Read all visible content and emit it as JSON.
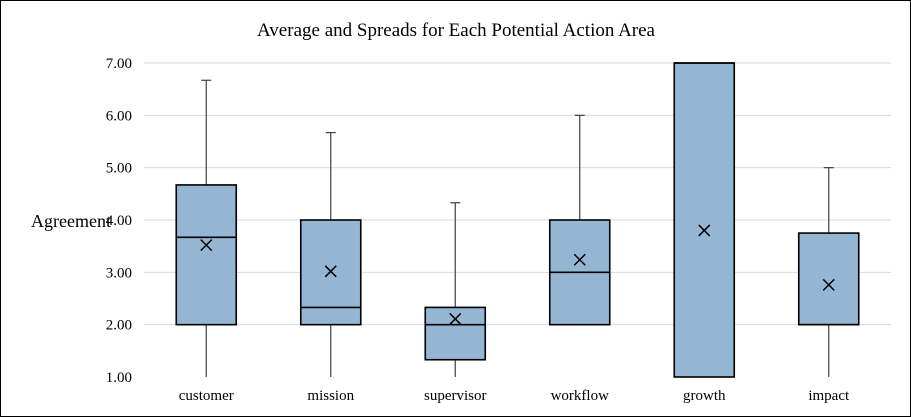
{
  "chart_data": {
    "type": "box",
    "title": "Average and Spreads for Each Potential Action Area",
    "xlabel": "",
    "ylabel": "Agreement",
    "ylim": [
      1,
      7
    ],
    "yticks": [
      "1.00",
      "2.00",
      "3.00",
      "4.00",
      "5.00",
      "6.00",
      "7.00"
    ],
    "grid": true,
    "box_color": "#95B6D3",
    "categories": [
      "customer",
      "mission",
      "supervisor",
      "workflow",
      "growth",
      "impact"
    ],
    "boxes": [
      {
        "category": "customer",
        "min": 1.0,
        "q1": 2.0,
        "median": 3.67,
        "q3": 4.67,
        "max": 6.67,
        "mean": 3.52
      },
      {
        "category": "mission",
        "min": 1.0,
        "q1": 2.0,
        "median": 2.33,
        "q3": 4.0,
        "max": 5.67,
        "mean": 3.02
      },
      {
        "category": "supervisor",
        "min": 1.0,
        "q1": 1.33,
        "median": 2.0,
        "q3": 2.33,
        "max": 4.33,
        "mean": 2.11
      },
      {
        "category": "workflow",
        "min": 2.0,
        "q1": 2.0,
        "median": 3.0,
        "q3": 4.0,
        "max": 6.0,
        "mean": 3.24
      },
      {
        "category": "growth",
        "min": 1.0,
        "q1": 1.0,
        "median": 7.0,
        "q3": 7.0,
        "max": 7.0,
        "mean": 3.8
      },
      {
        "category": "impact",
        "min": 1.0,
        "q1": 2.0,
        "median": 2.0,
        "q3": 3.75,
        "max": 5.0,
        "mean": 2.76
      }
    ]
  }
}
